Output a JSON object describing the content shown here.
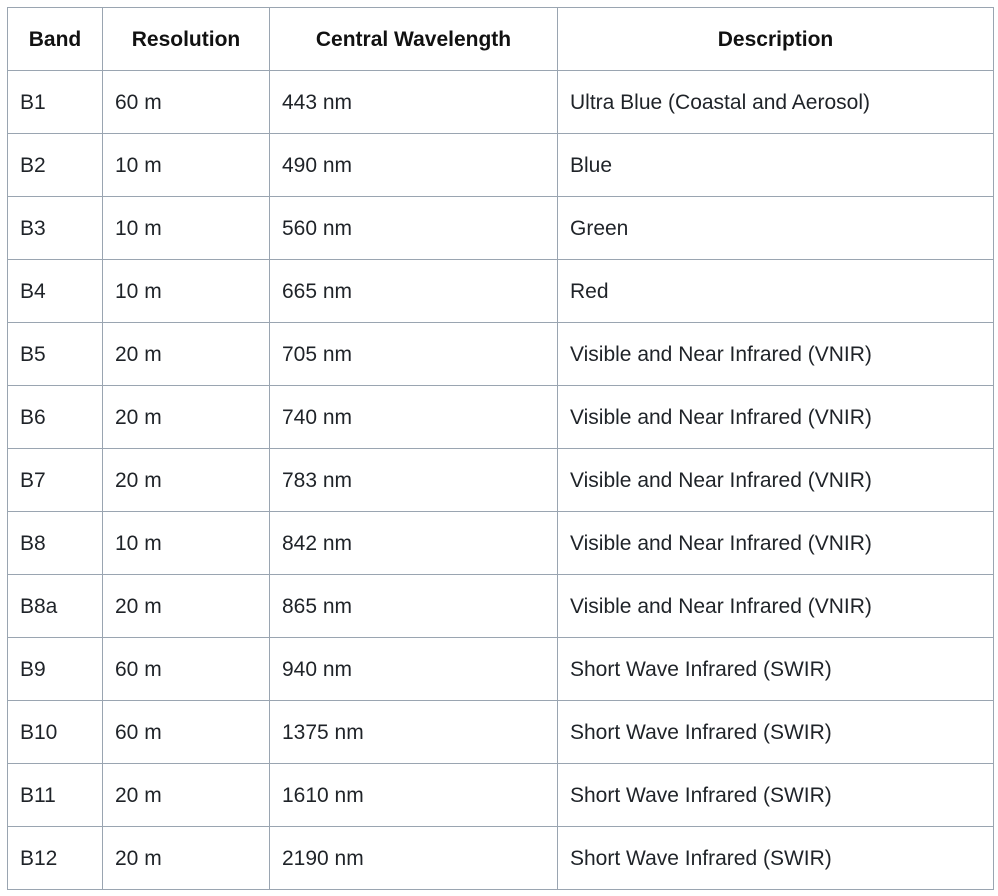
{
  "table": {
    "headers": [
      "Band",
      "Resolution",
      "Central Wavelength",
      "Description"
    ],
    "rows": [
      [
        "B1",
        "60 m",
        "443 nm",
        "Ultra Blue (Coastal and Aerosol)"
      ],
      [
        "B2",
        "10 m",
        "490 nm",
        "Blue"
      ],
      [
        "B3",
        "10 m",
        "560 nm",
        "Green"
      ],
      [
        "B4",
        "10 m",
        "665 nm",
        "Red"
      ],
      [
        "B5",
        "20 m",
        "705 nm",
        "Visible and Near Infrared (VNIR)"
      ],
      [
        "B6",
        "20 m",
        "740 nm",
        "Visible and Near Infrared (VNIR)"
      ],
      [
        "B7",
        "20 m",
        "783 nm",
        "Visible and Near Infrared (VNIR)"
      ],
      [
        "B8",
        "10 m",
        "842 nm",
        "Visible and Near Infrared (VNIR)"
      ],
      [
        "B8a",
        "20 m",
        "865 nm",
        "Visible and Near Infrared (VNIR)"
      ],
      [
        "B9",
        "60 m",
        "940 nm",
        "Short Wave Infrared (SWIR)"
      ],
      [
        "B10",
        "60 m",
        "1375 nm",
        "Short Wave Infrared (SWIR)"
      ],
      [
        "B11",
        "20 m",
        "1610 nm",
        "Short Wave Infrared (SWIR)"
      ],
      [
        "B12",
        "20 m",
        "2190 nm",
        "Short Wave Infrared (SWIR)"
      ]
    ]
  },
  "colors": {
    "border": "#9aa5b1",
    "text": "#1f2328",
    "background": "#ffffff"
  }
}
